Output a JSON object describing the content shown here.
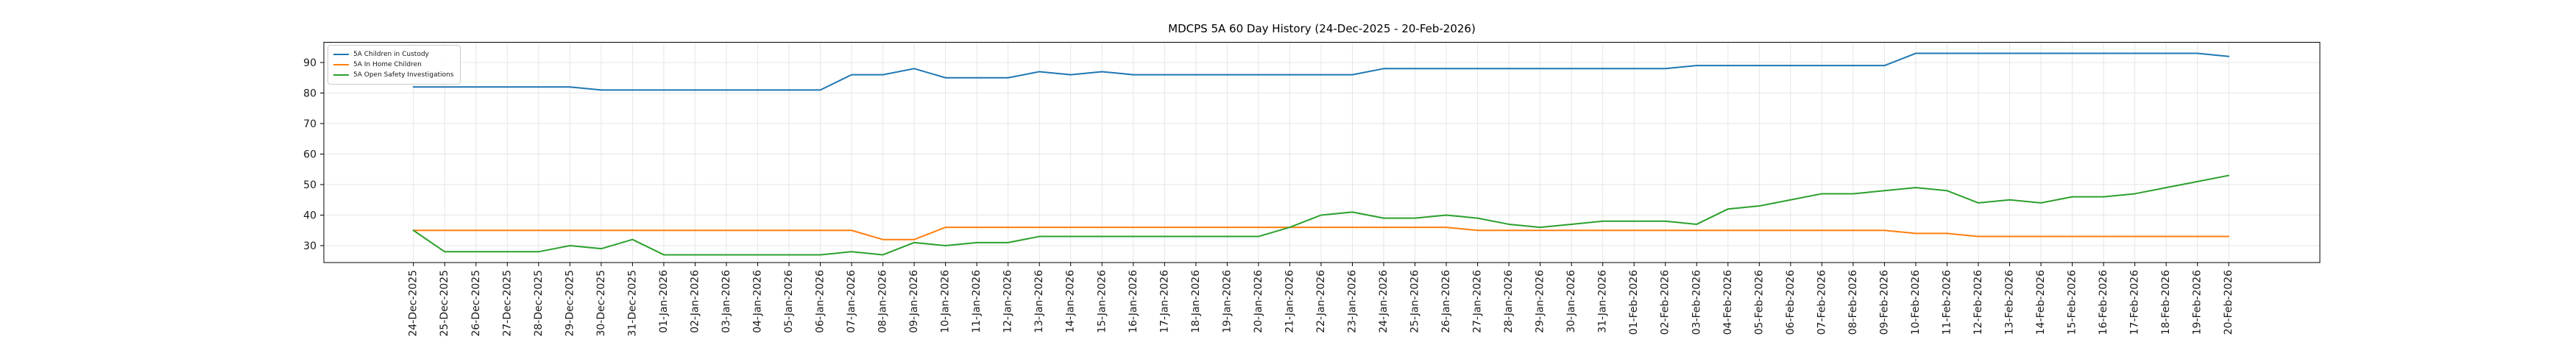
{
  "chart_data": {
    "type": "line",
    "title": "MDCPS 5A 60 Day History (24-Dec-2025 - 20-Feb-2026)",
    "xlabel": "",
    "ylabel": "",
    "grid": true,
    "legend_position": "upper left",
    "yticks": [
      30,
      40,
      50,
      60,
      70,
      80,
      90
    ],
    "ylim": [
      24.5,
      96.6
    ],
    "x": [
      "24-Dec-2025",
      "25-Dec-2025",
      "26-Dec-2025",
      "27-Dec-2025",
      "28-Dec-2025",
      "29-Dec-2025",
      "30-Dec-2025",
      "31-Dec-2025",
      "01-Jan-2026",
      "02-Jan-2026",
      "03-Jan-2026",
      "04-Jan-2026",
      "05-Jan-2026",
      "06-Jan-2026",
      "07-Jan-2026",
      "08-Jan-2026",
      "09-Jan-2026",
      "10-Jan-2026",
      "11-Jan-2026",
      "12-Jan-2026",
      "13-Jan-2026",
      "14-Jan-2026",
      "15-Jan-2026",
      "16-Jan-2026",
      "17-Jan-2026",
      "18-Jan-2026",
      "19-Jan-2026",
      "20-Jan-2026",
      "21-Jan-2026",
      "22-Jan-2026",
      "23-Jan-2026",
      "24-Jan-2026",
      "25-Jan-2026",
      "26-Jan-2026",
      "27-Jan-2026",
      "28-Jan-2026",
      "29-Jan-2026",
      "30-Jan-2026",
      "31-Jan-2026",
      "01-Feb-2026",
      "02-Feb-2026",
      "03-Feb-2026",
      "04-Feb-2026",
      "05-Feb-2026",
      "06-Feb-2026",
      "07-Feb-2026",
      "08-Feb-2026",
      "09-Feb-2026",
      "10-Feb-2026",
      "11-Feb-2026",
      "12-Feb-2026",
      "13-Feb-2026",
      "14-Feb-2026",
      "15-Feb-2026",
      "16-Feb-2026",
      "17-Feb-2026",
      "18-Feb-2026",
      "19-Feb-2026",
      "20-Feb-2026"
    ],
    "series": [
      {
        "name": "5A Children in Custody",
        "color": "#1f77b4",
        "values": [
          82,
          82,
          82,
          82,
          82,
          82,
          81,
          81,
          81,
          81,
          81,
          81,
          81,
          81,
          86,
          86,
          88,
          85,
          85,
          85,
          87,
          86,
          87,
          86,
          86,
          86,
          86,
          86,
          86,
          86,
          86,
          88,
          88,
          88,
          88,
          88,
          88,
          88,
          88,
          88,
          88,
          89,
          89,
          89,
          89,
          89,
          89,
          89,
          93,
          93,
          93,
          93,
          93,
          93,
          93,
          93,
          93,
          93,
          92
        ]
      },
      {
        "name": "5A In Home Children",
        "color": "#ff7f0e",
        "values": [
          35,
          35,
          35,
          35,
          35,
          35,
          35,
          35,
          35,
          35,
          35,
          35,
          35,
          35,
          35,
          32,
          32,
          36,
          36,
          36,
          36,
          36,
          36,
          36,
          36,
          36,
          36,
          36,
          36,
          36,
          36,
          36,
          36,
          36,
          35,
          35,
          35,
          35,
          35,
          35,
          35,
          35,
          35,
          35,
          35,
          35,
          35,
          35,
          34,
          34,
          33,
          33,
          33,
          33,
          33,
          33,
          33,
          33,
          33
        ]
      },
      {
        "name": "5A Open Safety Investigations",
        "color": "#2ca02c",
        "values": [
          35,
          28,
          28,
          28,
          28,
          30,
          29,
          32,
          27,
          27,
          27,
          27,
          27,
          27,
          28,
          27,
          31,
          30,
          31,
          31,
          33,
          33,
          33,
          33,
          33,
          33,
          33,
          33,
          36,
          40,
          41,
          39,
          39,
          40,
          39,
          37,
          36,
          37,
          38,
          38,
          38,
          37,
          42,
          43,
          45,
          47,
          47,
          48,
          49,
          48,
          44,
          45,
          44,
          46,
          46,
          47,
          49,
          51,
          53
        ]
      }
    ]
  },
  "style": {
    "grid_color": "#e6e6e6",
    "spine_color": "#000000",
    "tick_color": "#000000",
    "label_color": "#1a1a1a",
    "background": "#ffffff"
  }
}
